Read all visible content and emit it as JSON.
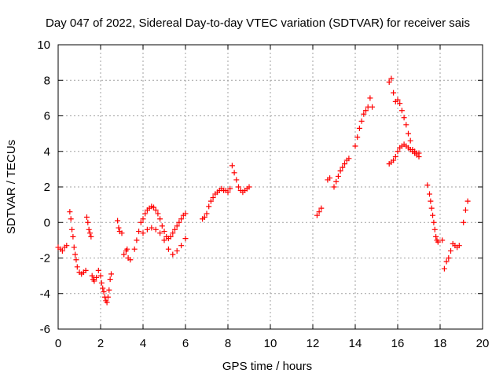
{
  "chart_data": {
    "type": "scatter",
    "title": "Day 047 of 2022, Sidereal Day-to-day VTEC variation (SDTVAR) for receiver sais",
    "xlabel": "GPS time / hours",
    "ylabel": "SDTVAR / TECUs",
    "xlim": [
      0,
      20
    ],
    "ylim": [
      -6,
      10
    ],
    "xticks": [
      0,
      2,
      4,
      6,
      8,
      10,
      12,
      14,
      16,
      18,
      20
    ],
    "yticks": [
      -6,
      -4,
      -2,
      0,
      2,
      4,
      6,
      8,
      10
    ],
    "grid": true,
    "marker": "+",
    "marker_color": "#ff0000",
    "series": [
      {
        "name": "SDTVAR",
        "x": [
          0.0,
          0.1,
          0.2,
          0.3,
          0.4,
          0.55,
          0.6,
          0.65,
          0.7,
          0.75,
          0.8,
          0.85,
          0.9,
          1.0,
          1.1,
          1.2,
          1.3,
          1.35,
          1.4,
          1.45,
          1.5,
          1.55,
          1.6,
          1.65,
          1.7,
          1.8,
          1.9,
          2.0,
          2.05,
          2.1,
          2.15,
          2.2,
          2.25,
          2.3,
          2.35,
          2.4,
          2.45,
          2.5,
          2.8,
          2.85,
          2.9,
          3.0,
          3.1,
          3.2,
          3.25,
          3.3,
          3.4,
          3.6,
          3.7,
          3.8,
          3.9,
          4.0,
          4.1,
          4.2,
          4.3,
          4.4,
          4.5,
          4.6,
          4.7,
          4.8,
          4.9,
          5.0,
          5.1,
          5.2,
          5.3,
          5.4,
          5.5,
          5.6,
          5.7,
          5.8,
          5.9,
          6.0,
          4.0,
          4.2,
          4.4,
          4.6,
          4.8,
          5.0,
          5.2,
          5.4,
          5.6,
          5.8,
          6.0,
          6.8,
          6.9,
          7.0,
          7.1,
          7.2,
          7.3,
          7.4,
          7.5,
          7.6,
          7.7,
          7.8,
          7.9,
          8.0,
          8.1,
          8.2,
          8.3,
          8.4,
          8.5,
          8.6,
          8.7,
          8.8,
          8.9,
          9.0,
          12.2,
          12.3,
          12.4,
          12.7,
          12.8,
          13.0,
          13.1,
          13.2,
          13.3,
          13.4,
          13.5,
          13.6,
          13.7,
          14.0,
          14.1,
          14.2,
          14.3,
          14.4,
          14.5,
          14.6,
          14.7,
          14.8,
          15.6,
          15.7,
          15.8,
          15.9,
          16.0,
          16.1,
          16.2,
          16.3,
          16.4,
          16.5,
          16.6,
          16.7,
          16.8,
          16.9,
          17.0,
          15.6,
          15.7,
          15.8,
          15.9,
          16.0,
          16.1,
          16.2,
          16.3,
          16.4,
          16.5,
          16.6,
          16.7,
          16.8,
          16.9,
          17.0,
          17.4,
          17.5,
          17.55,
          17.6,
          17.65,
          17.7,
          17.75,
          17.8,
          17.85,
          17.9,
          18.1,
          18.2,
          18.3,
          18.4,
          18.5,
          18.6,
          18.7,
          18.8,
          18.9,
          19.1,
          19.2,
          19.3
        ],
        "y": [
          -1.4,
          -1.5,
          -1.6,
          -1.4,
          -1.3,
          0.6,
          0.2,
          -0.4,
          -0.8,
          -1.4,
          -1.8,
          -2.1,
          -2.5,
          -2.8,
          -2.9,
          -2.8,
          -2.7,
          0.3,
          0.0,
          -0.4,
          -0.6,
          -0.8,
          -3.0,
          -3.2,
          -3.3,
          -3.1,
          -2.7,
          -3.0,
          -3.4,
          -3.7,
          -3.9,
          -4.2,
          -4.4,
          -4.5,
          -4.2,
          -3.8,
          -3.2,
          -2.9,
          0.1,
          -0.3,
          -0.5,
          -0.6,
          -1.8,
          -1.6,
          -1.5,
          -2.0,
          -2.1,
          -1.5,
          -1.0,
          -0.5,
          0.0,
          0.2,
          0.5,
          0.7,
          0.8,
          0.9,
          0.85,
          0.7,
          0.5,
          0.2,
          -0.2,
          -0.5,
          -0.8,
          -0.9,
          -0.8,
          -0.6,
          -0.4,
          -0.2,
          0.0,
          0.2,
          0.4,
          0.5,
          -0.6,
          -0.4,
          -0.3,
          -0.4,
          -0.6,
          -1.0,
          -1.5,
          -1.8,
          -1.6,
          -1.3,
          -0.9,
          0.2,
          0.3,
          0.5,
          0.9,
          1.2,
          1.4,
          1.6,
          1.7,
          1.8,
          1.9,
          1.8,
          1.8,
          1.7,
          1.9,
          3.2,
          2.8,
          2.4,
          2.0,
          1.8,
          1.7,
          1.8,
          1.9,
          2.0,
          0.4,
          0.6,
          0.8,
          2.4,
          2.5,
          2.0,
          2.3,
          2.6,
          2.9,
          3.1,
          3.3,
          3.5,
          3.6,
          4.3,
          4.8,
          5.3,
          5.7,
          6.1,
          6.3,
          6.5,
          7.0,
          6.5,
          7.9,
          8.1,
          7.3,
          6.8,
          6.9,
          6.7,
          6.3,
          5.9,
          5.5,
          5.0,
          4.6,
          4.1,
          3.9,
          3.8,
          3.7,
          3.3,
          3.4,
          3.5,
          3.7,
          4.0,
          4.2,
          4.3,
          4.4,
          4.3,
          4.2,
          4.1,
          4.0,
          4.0,
          3.9,
          3.9,
          2.1,
          1.6,
          1.2,
          0.8,
          0.4,
          0.0,
          -0.4,
          -0.8,
          -1.0,
          -1.1,
          -1.0,
          -2.6,
          -2.2,
          -2.0,
          -1.6,
          -1.2,
          -1.3,
          -1.4,
          -1.3,
          0.0,
          0.7,
          1.2
        ]
      }
    ]
  }
}
